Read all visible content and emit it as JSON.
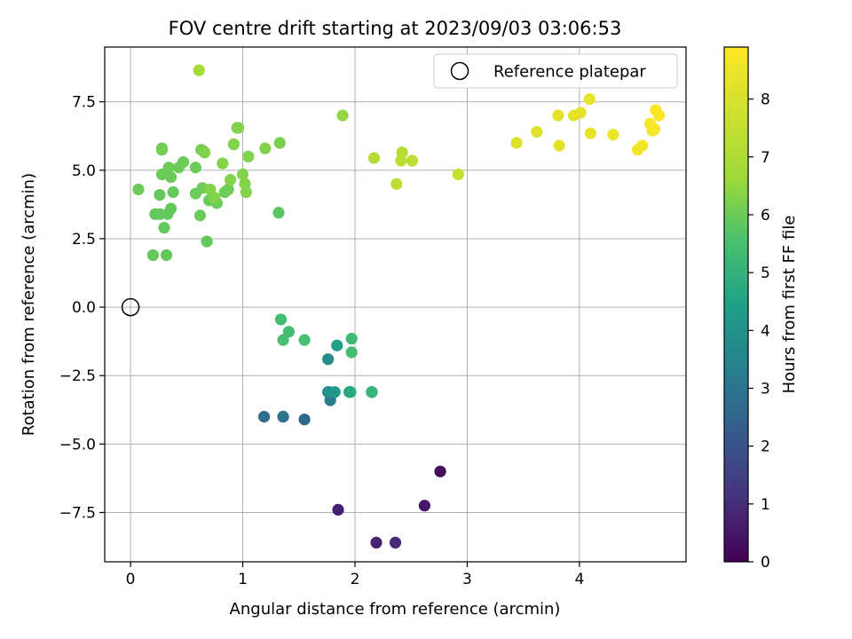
{
  "chart_data": {
    "type": "scatter",
    "title": "FOV centre drift starting at 2023/09/03 03:06:53",
    "xlabel": "Angular distance from reference (arcmin)",
    "ylabel": "Rotation from reference (arcmin)",
    "xlim": [
      -0.23,
      4.95
    ],
    "ylim": [
      -9.3,
      9.5
    ],
    "xticks": [
      0,
      1,
      2,
      3,
      4
    ],
    "xtick_labels": [
      "0",
      "1",
      "2",
      "3",
      "4"
    ],
    "yticks": [
      7.5,
      5.0,
      2.5,
      0.0,
      -2.5,
      -5.0,
      -7.5
    ],
    "ytick_labels": [
      "7.5",
      "5.0",
      "2.5",
      "0.0",
      "−2.5",
      "−5.0",
      "−7.5"
    ],
    "grid": true,
    "legend": {
      "position": "top-right",
      "entries": [
        "Reference platepar"
      ]
    },
    "reference_point": {
      "name": "Reference platepar",
      "x": 0,
      "y": 0,
      "marker": "hollow-circle"
    },
    "colorbar": {
      "label": "Hours from first FF file",
      "colormap": "viridis",
      "range": [
        0,
        8.9
      ],
      "ticks": [
        0,
        1,
        2,
        3,
        4,
        5,
        6,
        7,
        8
      ],
      "tick_labels": [
        "0",
        "1",
        "2",
        "3",
        "4",
        "5",
        "6",
        "7",
        "8"
      ]
    },
    "x": [
      2.76,
      2.62,
      1.85,
      2.19,
      2.36,
      1.55,
      1.19,
      1.36,
      1.36,
      1.78,
      1.76,
      1.77,
      1.82,
      1.95,
      1.96,
      2.15,
      2.15,
      2.15,
      1.76,
      1.84,
      1.97,
      1.97,
      1.55,
      1.36,
      1.41,
      1.34,
      1.32,
      0.26,
      0.33,
      0.22,
      0.3,
      0.68,
      0.32,
      0.2,
      0.26,
      0.38,
      0.36,
      0.07,
      0.62,
      0.7,
      0.77,
      0.84,
      0.87,
      0.64,
      0.58,
      0.28,
      0.36,
      0.34,
      0.43,
      0.28,
      0.47,
      0.58,
      0.28,
      0.63,
      0.65,
      0.66,
      0.82,
      0.89,
      0.92,
      1.02,
      1.03,
      1.0,
      0.95,
      0.71,
      0.75,
      1.05,
      1.2,
      0.96,
      1.33,
      0.61,
      1.89,
      2.37,
      2.42,
      2.17,
      2.41,
      2.51,
      2.92,
      3.44,
      3.62,
      3.81,
      3.82,
      3.95,
      4.01,
      4.09,
      4.1,
      4.3,
      4.52,
      4.56,
      4.63,
      4.65,
      4.67,
      4.68,
      4.71
    ],
    "y": [
      -6.0,
      -7.25,
      -7.4,
      -8.6,
      -8.6,
      -4.1,
      -4.0,
      -4.0,
      -4.0,
      -3.4,
      -3.1,
      -3.1,
      -3.1,
      -3.1,
      -3.1,
      -3.1,
      -3.1,
      -3.1,
      -1.9,
      -1.4,
      -1.15,
      -1.65,
      -1.2,
      -1.2,
      -0.9,
      -0.45,
      3.45,
      3.4,
      3.4,
      3.4,
      2.9,
      2.4,
      1.9,
      1.9,
      4.1,
      4.2,
      3.6,
      4.3,
      3.35,
      3.9,
      3.8,
      4.2,
      4.3,
      4.35,
      4.15,
      4.85,
      4.75,
      5.1,
      5.1,
      5.8,
      5.3,
      5.1,
      5.75,
      5.75,
      5.7,
      5.65,
      5.25,
      4.65,
      5.95,
      4.5,
      4.2,
      4.85,
      6.55,
      4.3,
      4.0,
      5.5,
      5.8,
      6.55,
      6.0,
      8.65,
      7.0,
      4.5,
      5.65,
      5.45,
      5.35,
      5.35,
      4.85,
      6.0,
      6.4,
      7.0,
      5.9,
      7.0,
      7.1,
      7.6,
      6.35,
      6.3,
      5.75,
      5.9,
      6.7,
      6.45,
      6.5,
      7.2,
      7.0
    ],
    "hours": [
      0.3,
      0.5,
      0.7,
      0.8,
      0.9,
      2.6,
      2.8,
      2.9,
      3.0,
      3.2,
      3.6,
      4.0,
      4.2,
      4.6,
      4.7,
      4.8,
      5.0,
      5.1,
      3.8,
      4.5,
      5.3,
      5.4,
      5.5,
      5.5,
      5.4,
      5.4,
      5.8,
      5.9,
      5.9,
      5.9,
      5.9,
      5.9,
      5.9,
      5.9,
      5.9,
      5.9,
      5.9,
      6.0,
      6.0,
      6.0,
      6.0,
      6.0,
      6.0,
      6.0,
      6.0,
      6.0,
      6.0,
      6.0,
      6.0,
      6.0,
      6.0,
      6.0,
      6.1,
      6.1,
      6.1,
      6.3,
      6.3,
      6.3,
      6.3,
      6.3,
      6.3,
      6.3,
      6.2,
      6.3,
      6.3,
      6.3,
      6.3,
      6.3,
      6.2,
      6.8,
      6.5,
      7.3,
      7.2,
      7.2,
      7.3,
      7.3,
      7.5,
      8.1,
      8.1,
      8.3,
      8.3,
      8.3,
      8.3,
      8.4,
      8.4,
      8.5,
      8.6,
      8.6,
      8.7,
      8.7,
      8.8,
      8.8,
      8.8
    ]
  }
}
